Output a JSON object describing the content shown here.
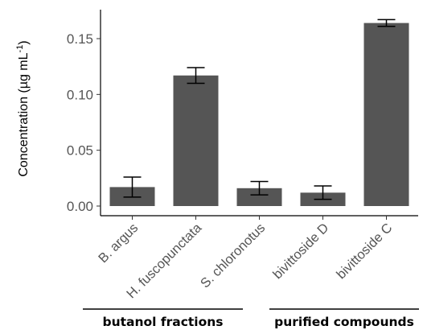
{
  "chart_data": {
    "type": "bar",
    "categories": [
      "B. argus",
      "H. fuscopunctata",
      "S. chloronotus",
      "bivittoside D",
      "bivittoside C"
    ],
    "values": [
      0.017,
      0.117,
      0.016,
      0.012,
      0.164
    ],
    "errors": [
      0.009,
      0.007,
      0.006,
      0.006,
      0.003
    ],
    "ylabel": "Concentration (µg mL",
    "ylabel_superscript": "-1",
    "ylabel_close": ")",
    "ylim": [
      0,
      0.175
    ],
    "yticks": [
      0.0,
      0.05,
      0.1,
      0.15
    ],
    "ytick_labels": [
      "0.00",
      "0.05",
      "0.10",
      "0.15"
    ],
    "groups": [
      {
        "label": "butanol fractions",
        "categories": [
          "B. argus",
          "H. fuscopunctata",
          "S. chloronotus"
        ]
      },
      {
        "label": "purified compounds",
        "categories": [
          "bivittoside D",
          "bivittoside C"
        ]
      }
    ],
    "grid": false,
    "bar_color": "#555555"
  }
}
